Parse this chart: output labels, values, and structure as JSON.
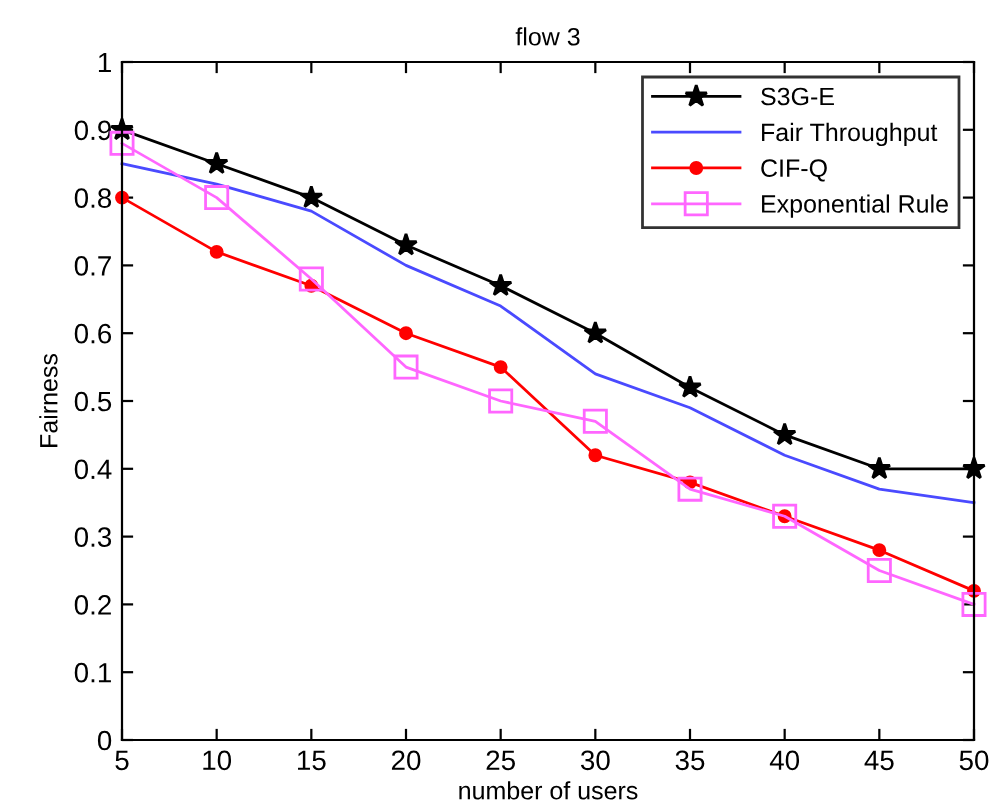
{
  "chart_data": {
    "type": "line",
    "title": "flow 3",
    "xlabel": "number of users",
    "ylabel": "Fairness",
    "x": [
      5,
      10,
      15,
      20,
      25,
      30,
      35,
      40,
      45,
      50
    ],
    "series": [
      {
        "name": "S3G-E",
        "color": "#000000",
        "marker": "star",
        "values": [
          0.9,
          0.85,
          0.8,
          0.73,
          0.67,
          0.6,
          0.52,
          0.45,
          0.4,
          0.4
        ]
      },
      {
        "name": "Fair Throughput",
        "color": "#4a4aff",
        "marker": "none",
        "values": [
          0.85,
          0.82,
          0.78,
          0.7,
          0.64,
          0.54,
          0.49,
          0.42,
          0.37,
          0.35
        ]
      },
      {
        "name": "CIF-Q",
        "color": "#ff0000",
        "marker": "circle",
        "values": [
          0.8,
          0.72,
          0.67,
          0.6,
          0.55,
          0.42,
          0.38,
          0.33,
          0.28,
          0.22
        ]
      },
      {
        "name": "Exponential Rule",
        "color": "#ff66ff",
        "marker": "square",
        "values": [
          0.88,
          0.8,
          0.68,
          0.55,
          0.5,
          0.47,
          0.37,
          0.33,
          0.25,
          0.2
        ]
      }
    ],
    "xlim": [
      5,
      50
    ],
    "ylim": [
      0,
      1
    ],
    "xticks": [
      5,
      10,
      15,
      20,
      25,
      30,
      35,
      40,
      45,
      50
    ],
    "yticks": [
      0,
      0.1,
      0.2,
      0.3,
      0.4,
      0.5,
      0.6,
      0.7,
      0.8,
      0.9,
      1
    ],
    "grid": false,
    "legend": "top right",
    "line_style": "solid"
  }
}
